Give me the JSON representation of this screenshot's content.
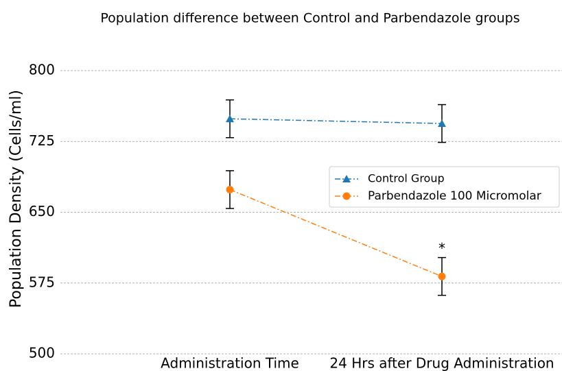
{
  "chart_data": {
    "type": "line",
    "title": "Population difference between Control and Parbendazole groups",
    "ylabel": "Population Density (Cells/ml)",
    "categories": [
      "Administration Time",
      "24 Hrs after Drug Administration"
    ],
    "series": [
      {
        "name": "Control Group",
        "color": "#1f77b4",
        "marker": "triangle",
        "values": [
          749,
          744
        ],
        "errors": [
          20,
          20
        ]
      },
      {
        "name": "Parbendazole 100 Micromolar",
        "color": "#ff7f0e",
        "marker": "circle",
        "values": [
          674,
          582
        ],
        "errors": [
          20,
          20
        ]
      }
    ],
    "annotations": [
      "*"
    ],
    "ylim": [
      500,
      800
    ],
    "yticks": [
      500,
      575,
      650,
      725,
      800
    ],
    "grid": true,
    "legend": "right"
  }
}
